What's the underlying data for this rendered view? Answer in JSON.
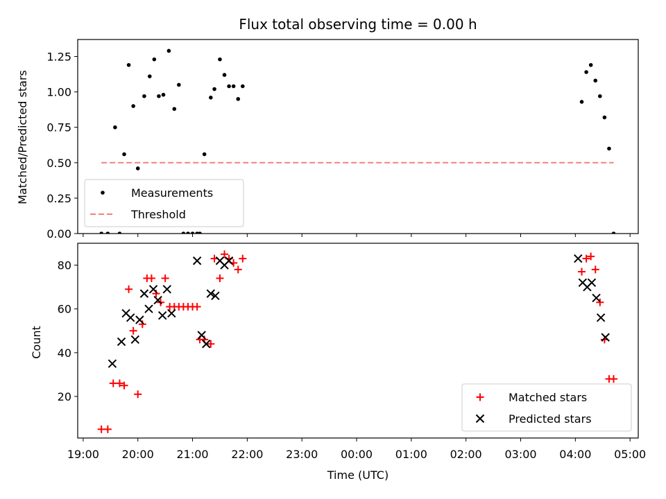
{
  "chart_data": [
    {
      "type": "scatter",
      "title": "Flux total observing time = 0.00 h",
      "xlabel": "",
      "ylabel": "Matched/Predicted stars",
      "ylim": [
        0,
        1.37
      ],
      "yticks": [
        "0.00",
        "0.25",
        "0.50",
        "0.75",
        "1.00",
        "1.25"
      ],
      "legend_position": "lower-left",
      "series": [
        {
          "name": "Measurements",
          "marker": "dot",
          "color": "#000000",
          "x": [
            "19:20",
            "19:27",
            "19:35",
            "19:40",
            "19:45",
            "19:50",
            "19:55",
            "20:00",
            "20:07",
            "20:13",
            "20:18",
            "20:23",
            "20:28",
            "20:34",
            "20:40",
            "20:45",
            "20:50",
            "20:55",
            "21:00",
            "21:05",
            "21:08",
            "21:13",
            "21:20",
            "21:24",
            "21:30",
            "21:35",
            "21:40",
            "21:45",
            "21:50",
            "21:55",
            "04:07",
            "04:12",
            "04:17",
            "04:22",
            "04:27",
            "04:32",
            "04:37",
            "04:42"
          ],
          "y": [
            0.0,
            0.0,
            0.75,
            0.0,
            0.56,
            1.19,
            0.9,
            0.46,
            0.97,
            1.11,
            1.23,
            0.97,
            0.98,
            1.29,
            0.88,
            1.05,
            0.0,
            0.0,
            0.0,
            0.0,
            0.0,
            0.56,
            0.96,
            1.02,
            1.23,
            1.12,
            1.04,
            1.04,
            0.95,
            1.04,
            0.93,
            1.14,
            1.19,
            1.08,
            0.97,
            0.82,
            0.6,
            0.0
          ]
        },
        {
          "name": "Threshold",
          "type": "line",
          "style": "dashed",
          "color": "#f08080",
          "x": [
            "19:20",
            "04:42"
          ],
          "y": [
            0.5,
            0.5
          ]
        }
      ]
    },
    {
      "type": "scatter",
      "title": "",
      "xlabel": "Time (UTC)",
      "ylabel": "Count",
      "ylim": [
        1,
        90
      ],
      "yticks": [
        "20",
        "40",
        "60",
        "80"
      ],
      "xticks": [
        "19:00",
        "20:00",
        "21:00",
        "22:00",
        "23:00",
        "00:00",
        "01:00",
        "02:00",
        "03:00",
        "04:00",
        "05:00"
      ],
      "legend_position": "lower-right",
      "series": [
        {
          "name": "Matched stars",
          "marker": "plus",
          "color": "#ff0000",
          "x": [
            "19:20",
            "19:27",
            "19:33",
            "19:40",
            "19:45",
            "19:50",
            "19:55",
            "20:00",
            "20:05",
            "20:10",
            "20:15",
            "20:20",
            "20:25",
            "20:30",
            "20:35",
            "20:40",
            "20:45",
            "20:50",
            "20:55",
            "21:00",
            "21:05",
            "21:08",
            "21:13",
            "21:20",
            "21:24",
            "21:30",
            "21:35",
            "21:40",
            "21:45",
            "21:50",
            "21:55",
            "04:07",
            "04:12",
            "04:17",
            "04:22",
            "04:27",
            "04:32",
            "04:37",
            "04:42"
          ],
          "y": [
            5,
            5,
            26,
            26,
            25,
            69,
            50,
            21,
            53,
            74,
            74,
            67,
            63,
            74,
            61,
            61,
            61,
            61,
            61,
            61,
            61,
            46,
            46,
            44,
            83,
            74,
            85,
            83,
            81,
            78,
            83,
            77,
            83,
            84,
            78,
            63,
            46,
            28,
            28
          ]
        },
        {
          "name": "Predicted stars",
          "marker": "x",
          "color": "#000000",
          "x": [
            "19:32",
            "19:42",
            "19:47",
            "19:52",
            "19:57",
            "20:02",
            "20:07",
            "20:12",
            "20:17",
            "20:22",
            "20:27",
            "20:32",
            "20:37",
            "21:05",
            "21:10",
            "21:15",
            "21:20",
            "21:25",
            "21:30",
            "21:35",
            "21:40",
            "04:03",
            "04:08",
            "04:13",
            "04:18",
            "04:23",
            "04:28",
            "04:33"
          ],
          "y": [
            35,
            45,
            58,
            56,
            46,
            55,
            67,
            60,
            69,
            64,
            57,
            69,
            58,
            82,
            48,
            44,
            67,
            66,
            82,
            80,
            82,
            83,
            72,
            70,
            72,
            65,
            56,
            47
          ]
        }
      ]
    }
  ]
}
